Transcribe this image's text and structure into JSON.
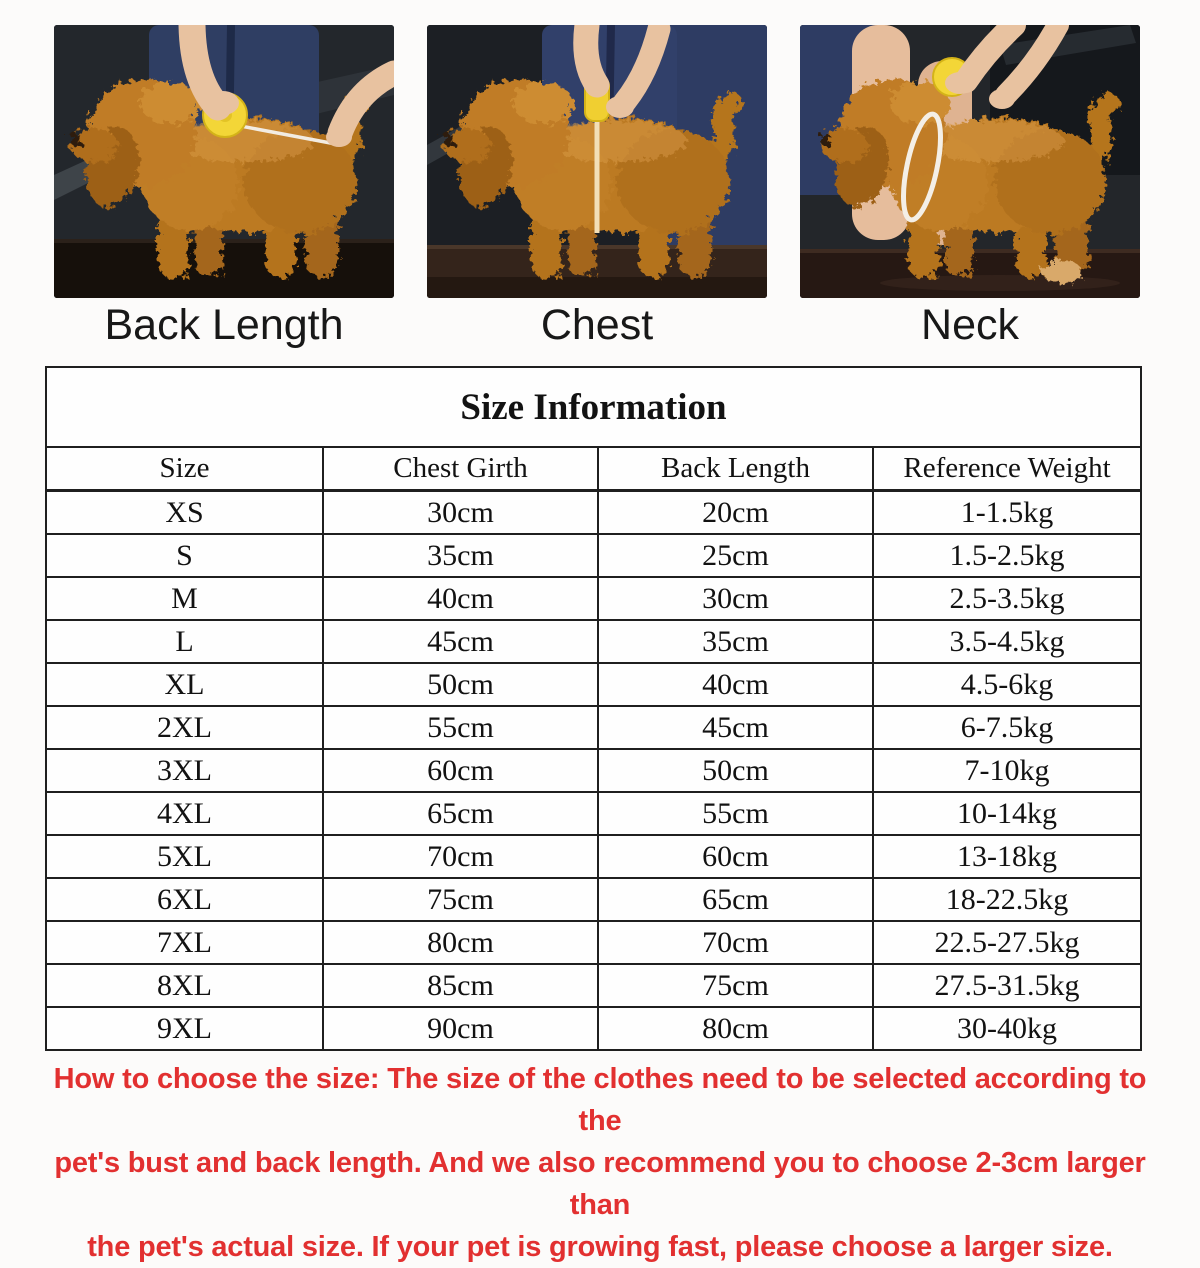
{
  "page": {
    "background": "#fcfbfa",
    "text_color": "#121212",
    "border_color": "#1f1f1f"
  },
  "photos": [
    {
      "label": "Back Length",
      "scene": "hands measuring plush dog along its back with yellow tape measure"
    },
    {
      "label": "Chest",
      "scene": "hands measuring plush dog chest girth with vertical tape"
    },
    {
      "label": "Neck",
      "scene": "hands measuring plush dog neck with tape loop"
    }
  ],
  "size_table": {
    "title": "Size Information",
    "columns": [
      "Size",
      "Chest Girth",
      "Back Length",
      "Reference Weight"
    ],
    "rows": [
      [
        "XS",
        "30cm",
        "20cm",
        "1-1.5kg"
      ],
      [
        "S",
        "35cm",
        "25cm",
        "1.5-2.5kg"
      ],
      [
        "M",
        "40cm",
        "30cm",
        "2.5-3.5kg"
      ],
      [
        "L",
        "45cm",
        "35cm",
        "3.5-4.5kg"
      ],
      [
        "XL",
        "50cm",
        "40cm",
        "4.5-6kg"
      ],
      [
        "2XL",
        "55cm",
        "45cm",
        "6-7.5kg"
      ],
      [
        "3XL",
        "60cm",
        "50cm",
        "7-10kg"
      ],
      [
        "4XL",
        "65cm",
        "55cm",
        "10-14kg"
      ],
      [
        "5XL",
        "70cm",
        "60cm",
        "13-18kg"
      ],
      [
        "6XL",
        "75cm",
        "65cm",
        "18-22.5kg"
      ],
      [
        "7XL",
        "80cm",
        "70cm",
        "22.5-27.5kg"
      ],
      [
        "8XL",
        "85cm",
        "75cm",
        "27.5-31.5kg"
      ],
      [
        "9XL",
        "90cm",
        "80cm",
        "30-40kg"
      ]
    ]
  },
  "note": {
    "color": "#e23030",
    "line1": "How to choose the size: The size of the clothes need to be selected according to the",
    "line2": "pet's bust and back length. And we also recommend you to choose 2-3cm larger than",
    "line3": "the pet's actual size. If your pet is growing fast, please choose a larger size."
  }
}
